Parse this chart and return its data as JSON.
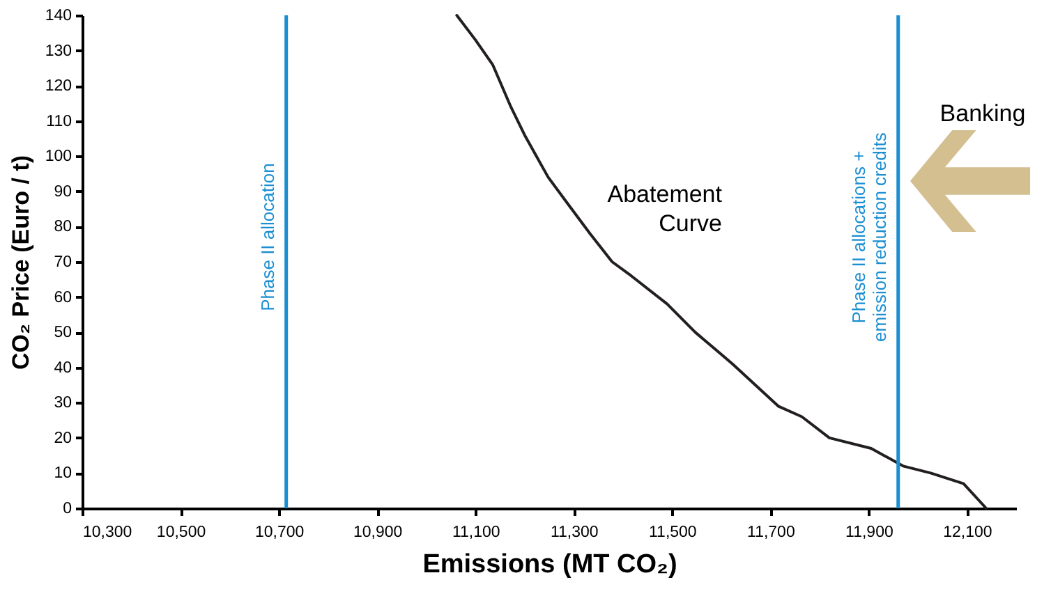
{
  "chart_data": {
    "type": "line",
    "xlabel": "Emissions (MT CO₂)",
    "ylabel": "CO₂ Price (Euro / t)",
    "xlim": [
      10300,
      12200
    ],
    "xticks": [
      {
        "value": 10300,
        "label": "10,300"
      },
      {
        "value": 10500,
        "label": "10,500"
      },
      {
        "value": 10700,
        "label": "10,700"
      },
      {
        "value": 10900,
        "label": "10,900"
      },
      {
        "value": 11100,
        "label": "11,100"
      },
      {
        "value": 11300,
        "label": "11,300"
      },
      {
        "value": 11500,
        "label": "11,500"
      },
      {
        "value": 11700,
        "label": "11,700"
      },
      {
        "value": 11900,
        "label": "11,900"
      },
      {
        "value": 12100,
        "label": "12,100"
      }
    ],
    "ylim": [
      0,
      140
    ],
    "yticks": [
      0,
      10,
      20,
      30,
      40,
      50,
      60,
      70,
      80,
      90,
      100,
      110,
      120,
      130,
      140
    ],
    "grid": false,
    "marker": "none",
    "line_style": "solid",
    "series": [
      {
        "color": "#231f20",
        "x": [
          11062,
          11100,
          11135,
          11172,
          11200,
          11248,
          11285,
          11333,
          11378,
          11417,
          11490,
          11547,
          11623,
          11716,
          11764,
          11820,
          11905,
          11970,
          12026,
          12093,
          12139
        ],
        "values": [
          140,
          133,
          126,
          114,
          106,
          94,
          87,
          78,
          70,
          66,
          58,
          50,
          41,
          29,
          26,
          20,
          17,
          12,
          10,
          7,
          0
        ]
      }
    ],
    "ref_lines": [
      {
        "axis": "x",
        "value": 10715,
        "label": "Phase II allocation",
        "color": "#1b8fd2",
        "line_style": "solid"
      },
      {
        "axis": "x",
        "value": 11960,
        "label": "Phase II allocations +\nemission reduction credits",
        "color": "#1b8fd2",
        "line_style": "solid"
      }
    ],
    "annotations": [
      "Abatement Curve",
      "Banking"
    ]
  }
}
